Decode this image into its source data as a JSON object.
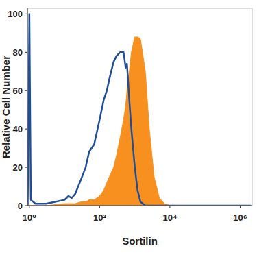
{
  "chart_data": {
    "type": "line",
    "x_label": "Sortilin",
    "y_label": "Relative Cell Number",
    "log": "x",
    "x": [
      0.9,
      1,
      1.1,
      1.5,
      3,
      10,
      13,
      16,
      20,
      30,
      40,
      50,
      70,
      100,
      130,
      160,
      200,
      250,
      300,
      380,
      480,
      550,
      600,
      700,
      800,
      1000,
      1200,
      1450,
      2000,
      2600,
      3550,
      5000,
      7000,
      10000,
      100000,
      2000000
    ],
    "series": [
      {
        "type": "area",
        "color": "#f7901e",
        "values": [
          0,
          0,
          0,
          0,
          0,
          1,
          1,
          1,
          1,
          2,
          2,
          3,
          3,
          5,
          8,
          12,
          16,
          20,
          26,
          35,
          45,
          52,
          60,
          70,
          80,
          88,
          88,
          87,
          70,
          40,
          15,
          4,
          1,
          0,
          0,
          0
        ]
      },
      {
        "type": "line",
        "color": "#1f4e9a",
        "values": [
          0,
          100,
          3,
          1,
          1,
          3,
          5,
          4,
          6,
          14,
          20,
          28,
          32,
          45,
          55,
          60,
          68,
          75,
          78,
          80,
          80,
          72,
          74,
          55,
          40,
          20,
          8,
          2,
          0,
          0,
          0,
          0,
          0,
          0,
          0,
          0
        ]
      }
    ],
    "xlim": [
      0.88,
      2200000
    ],
    "xticks": [
      {
        "value": 1,
        "label": "10⁰"
      },
      {
        "value": 100,
        "label": "10²"
      },
      {
        "value": 10000,
        "label": "10⁴"
      },
      {
        "value": 1000000,
        "label": "10⁶"
      }
    ],
    "ylim": [
      0,
      103
    ],
    "yticks": [
      0,
      20,
      40,
      60,
      80,
      100
    ],
    "grid": false
  }
}
